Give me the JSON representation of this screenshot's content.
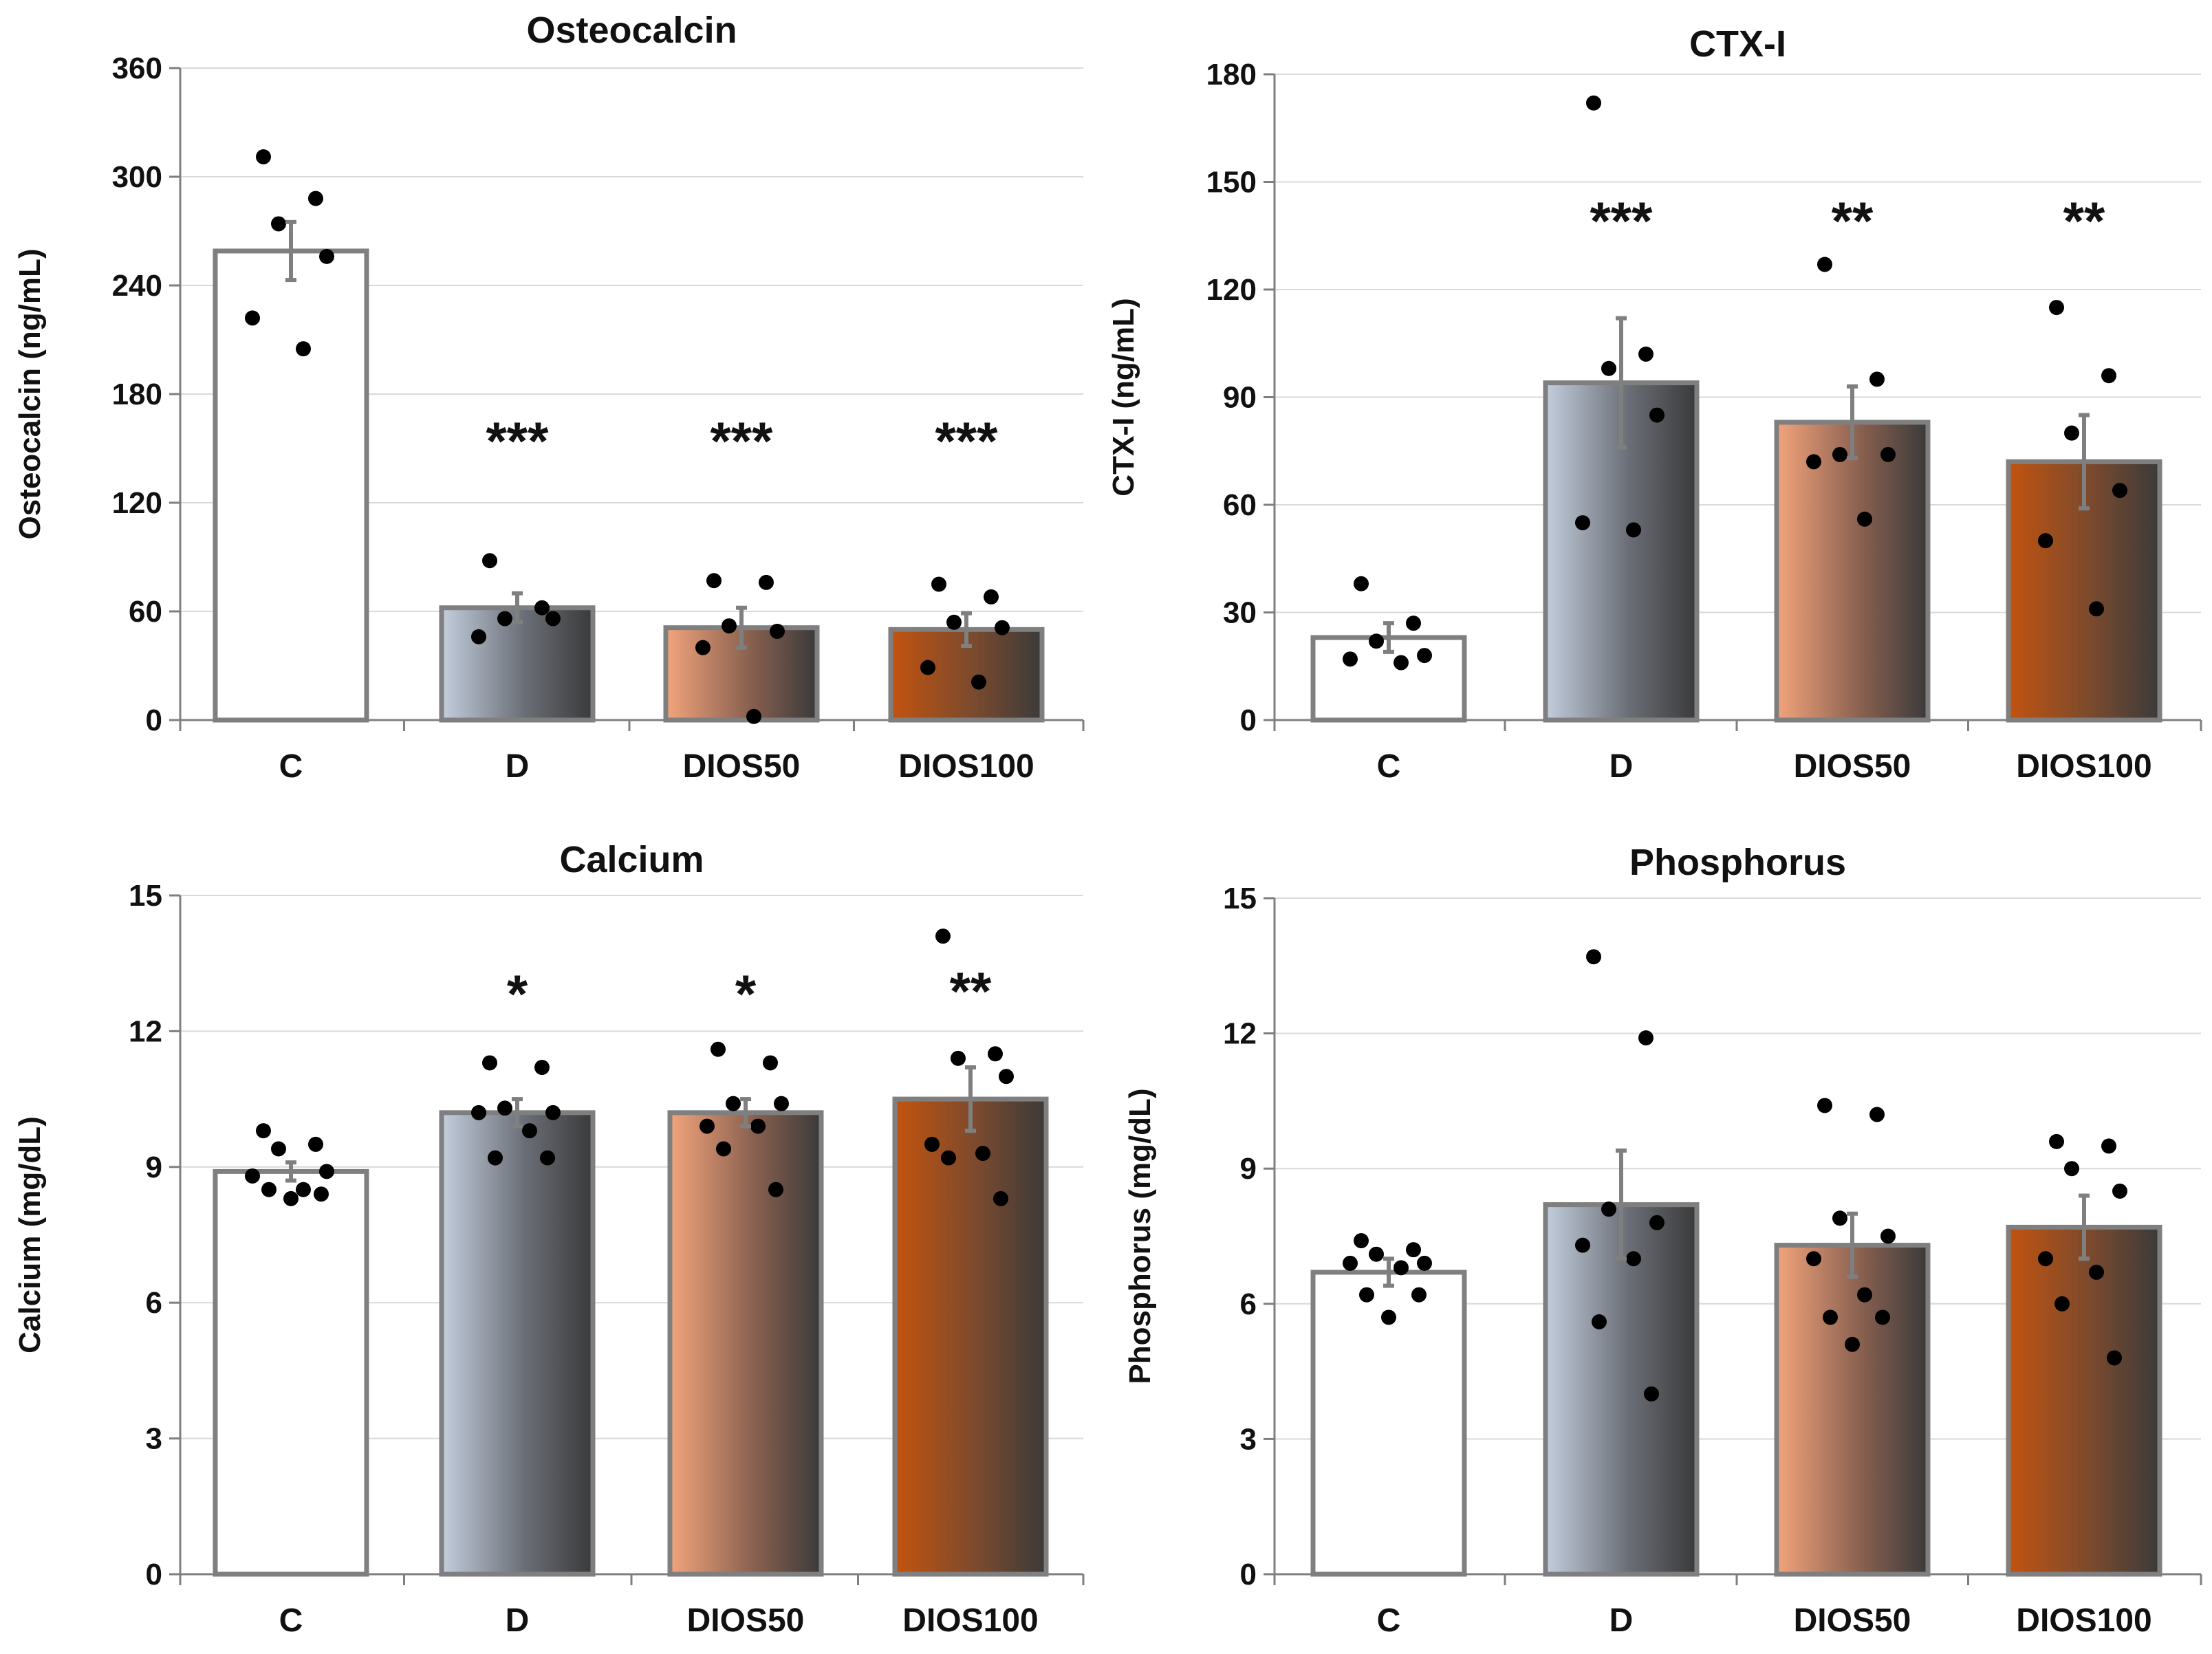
{
  "figure": {
    "colors": {
      "C": "#ffffff",
      "D_light": "#c3cedd",
      "DIOS50_light": "#f3a47c",
      "DIOS100_light": "#c2530f",
      "dark": "#3a3a3a",
      "bar_outline": "#7f7f7f",
      "grid": "#d9d9d9"
    }
  },
  "chart_data": [
    {
      "type": "bar",
      "title": "Osteocalcin",
      "ylabel": "Osteocalcin (ng/mL)",
      "xlabel": "",
      "ylim": [
        0,
        360
      ],
      "yticks": [
        0,
        60,
        120,
        180,
        240,
        300,
        360
      ],
      "ytick_labels": [
        "0",
        "60",
        "120",
        "180",
        "240",
        "300",
        "360"
      ],
      "categories": [
        "C",
        "D",
        "DIOS50",
        "DIOS100"
      ],
      "values": [
        259,
        62,
        51,
        50
      ],
      "errors": [
        16,
        8,
        11,
        9
      ],
      "significance": [
        "",
        "***",
        "***",
        "***"
      ],
      "points": [
        [
          311,
          288,
          274,
          256,
          222,
          205
        ],
        [
          88,
          62,
          56,
          56,
          46
        ],
        [
          77,
          76,
          52,
          49,
          40,
          2
        ],
        [
          75,
          68,
          54,
          51,
          29,
          21
        ]
      ],
      "grid": true
    },
    {
      "type": "bar",
      "title": "CTX-I",
      "ylabel": "CTX-I (ng/mL)",
      "xlabel": "",
      "ylim": [
        0,
        180
      ],
      "yticks": [
        0,
        30,
        60,
        90,
        120,
        150,
        180
      ],
      "ytick_labels": [
        "0",
        "30",
        "60",
        "90",
        "120",
        "150",
        "180"
      ],
      "categories": [
        "C",
        "D",
        "DIOS50",
        "DIOS100"
      ],
      "values": [
        23,
        94,
        83,
        72
      ],
      "errors": [
        4,
        18,
        10,
        13
      ],
      "significance": [
        "",
        "***",
        "**",
        "**"
      ],
      "points": [
        [
          38,
          27,
          22,
          18,
          17,
          16
        ],
        [
          172,
          102,
          98,
          85,
          55,
          53
        ],
        [
          127,
          95,
          74,
          74,
          72,
          56
        ],
        [
          115,
          96,
          80,
          64,
          50,
          31
        ]
      ],
      "grid": true
    },
    {
      "type": "bar",
      "title": "Calcium",
      "ylabel": "Calcium (mg/dL)",
      "xlabel": "",
      "ylim": [
        0,
        15
      ],
      "yticks": [
        0,
        3,
        6,
        9,
        12,
        15
      ],
      "ytick_labels": [
        "0",
        "3",
        "6",
        "9",
        "12",
        "15"
      ],
      "categories": [
        "C",
        "D",
        "DIOS50",
        "DIOS100"
      ],
      "values": [
        8.9,
        10.2,
        10.2,
        10.5
      ],
      "errors": [
        0.2,
        0.3,
        0.3,
        0.7
      ],
      "significance": [
        "",
        "*",
        "*",
        "**"
      ],
      "points": [
        [
          9.8,
          9.5,
          9.4,
          8.9,
          8.8,
          8.5,
          8.5,
          8.4,
          8.3
        ],
        [
          11.3,
          11.2,
          10.3,
          10.2,
          10.2,
          9.8,
          9.2,
          9.2
        ],
        [
          11.6,
          11.3,
          10.4,
          10.4,
          9.9,
          9.9,
          9.4,
          8.5
        ],
        [
          14.1,
          11.5,
          11.4,
          11.0,
          9.5,
          9.3,
          9.2,
          8.3
        ]
      ],
      "grid": true
    },
    {
      "type": "bar",
      "title": "Phosphorus",
      "ylabel": "Phosphorus (mg/dL)",
      "xlabel": "",
      "ylim": [
        0,
        15
      ],
      "yticks": [
        0,
        3,
        6,
        9,
        12,
        15
      ],
      "ytick_labels": [
        "0",
        "3",
        "6",
        "9",
        "12",
        "15"
      ],
      "categories": [
        "C",
        "D",
        "DIOS50",
        "DIOS100"
      ],
      "values": [
        6.7,
        8.2,
        7.3,
        7.7
      ],
      "errors": [
        0.3,
        1.2,
        0.7,
        0.7
      ],
      "significance": [
        "",
        "",
        "",
        ""
      ],
      "points": [
        [
          7.4,
          7.2,
          7.1,
          6.9,
          6.9,
          6.8,
          6.2,
          6.2,
          5.7
        ],
        [
          13.7,
          11.9,
          8.1,
          7.8,
          7.3,
          7.0,
          5.6,
          4.0
        ],
        [
          10.4,
          10.2,
          7.9,
          7.5,
          7.0,
          6.2,
          5.7,
          5.7,
          5.1
        ],
        [
          9.6,
          9.5,
          9.0,
          8.5,
          7.0,
          6.7,
          6.0,
          4.8
        ]
      ],
      "grid": true
    }
  ]
}
